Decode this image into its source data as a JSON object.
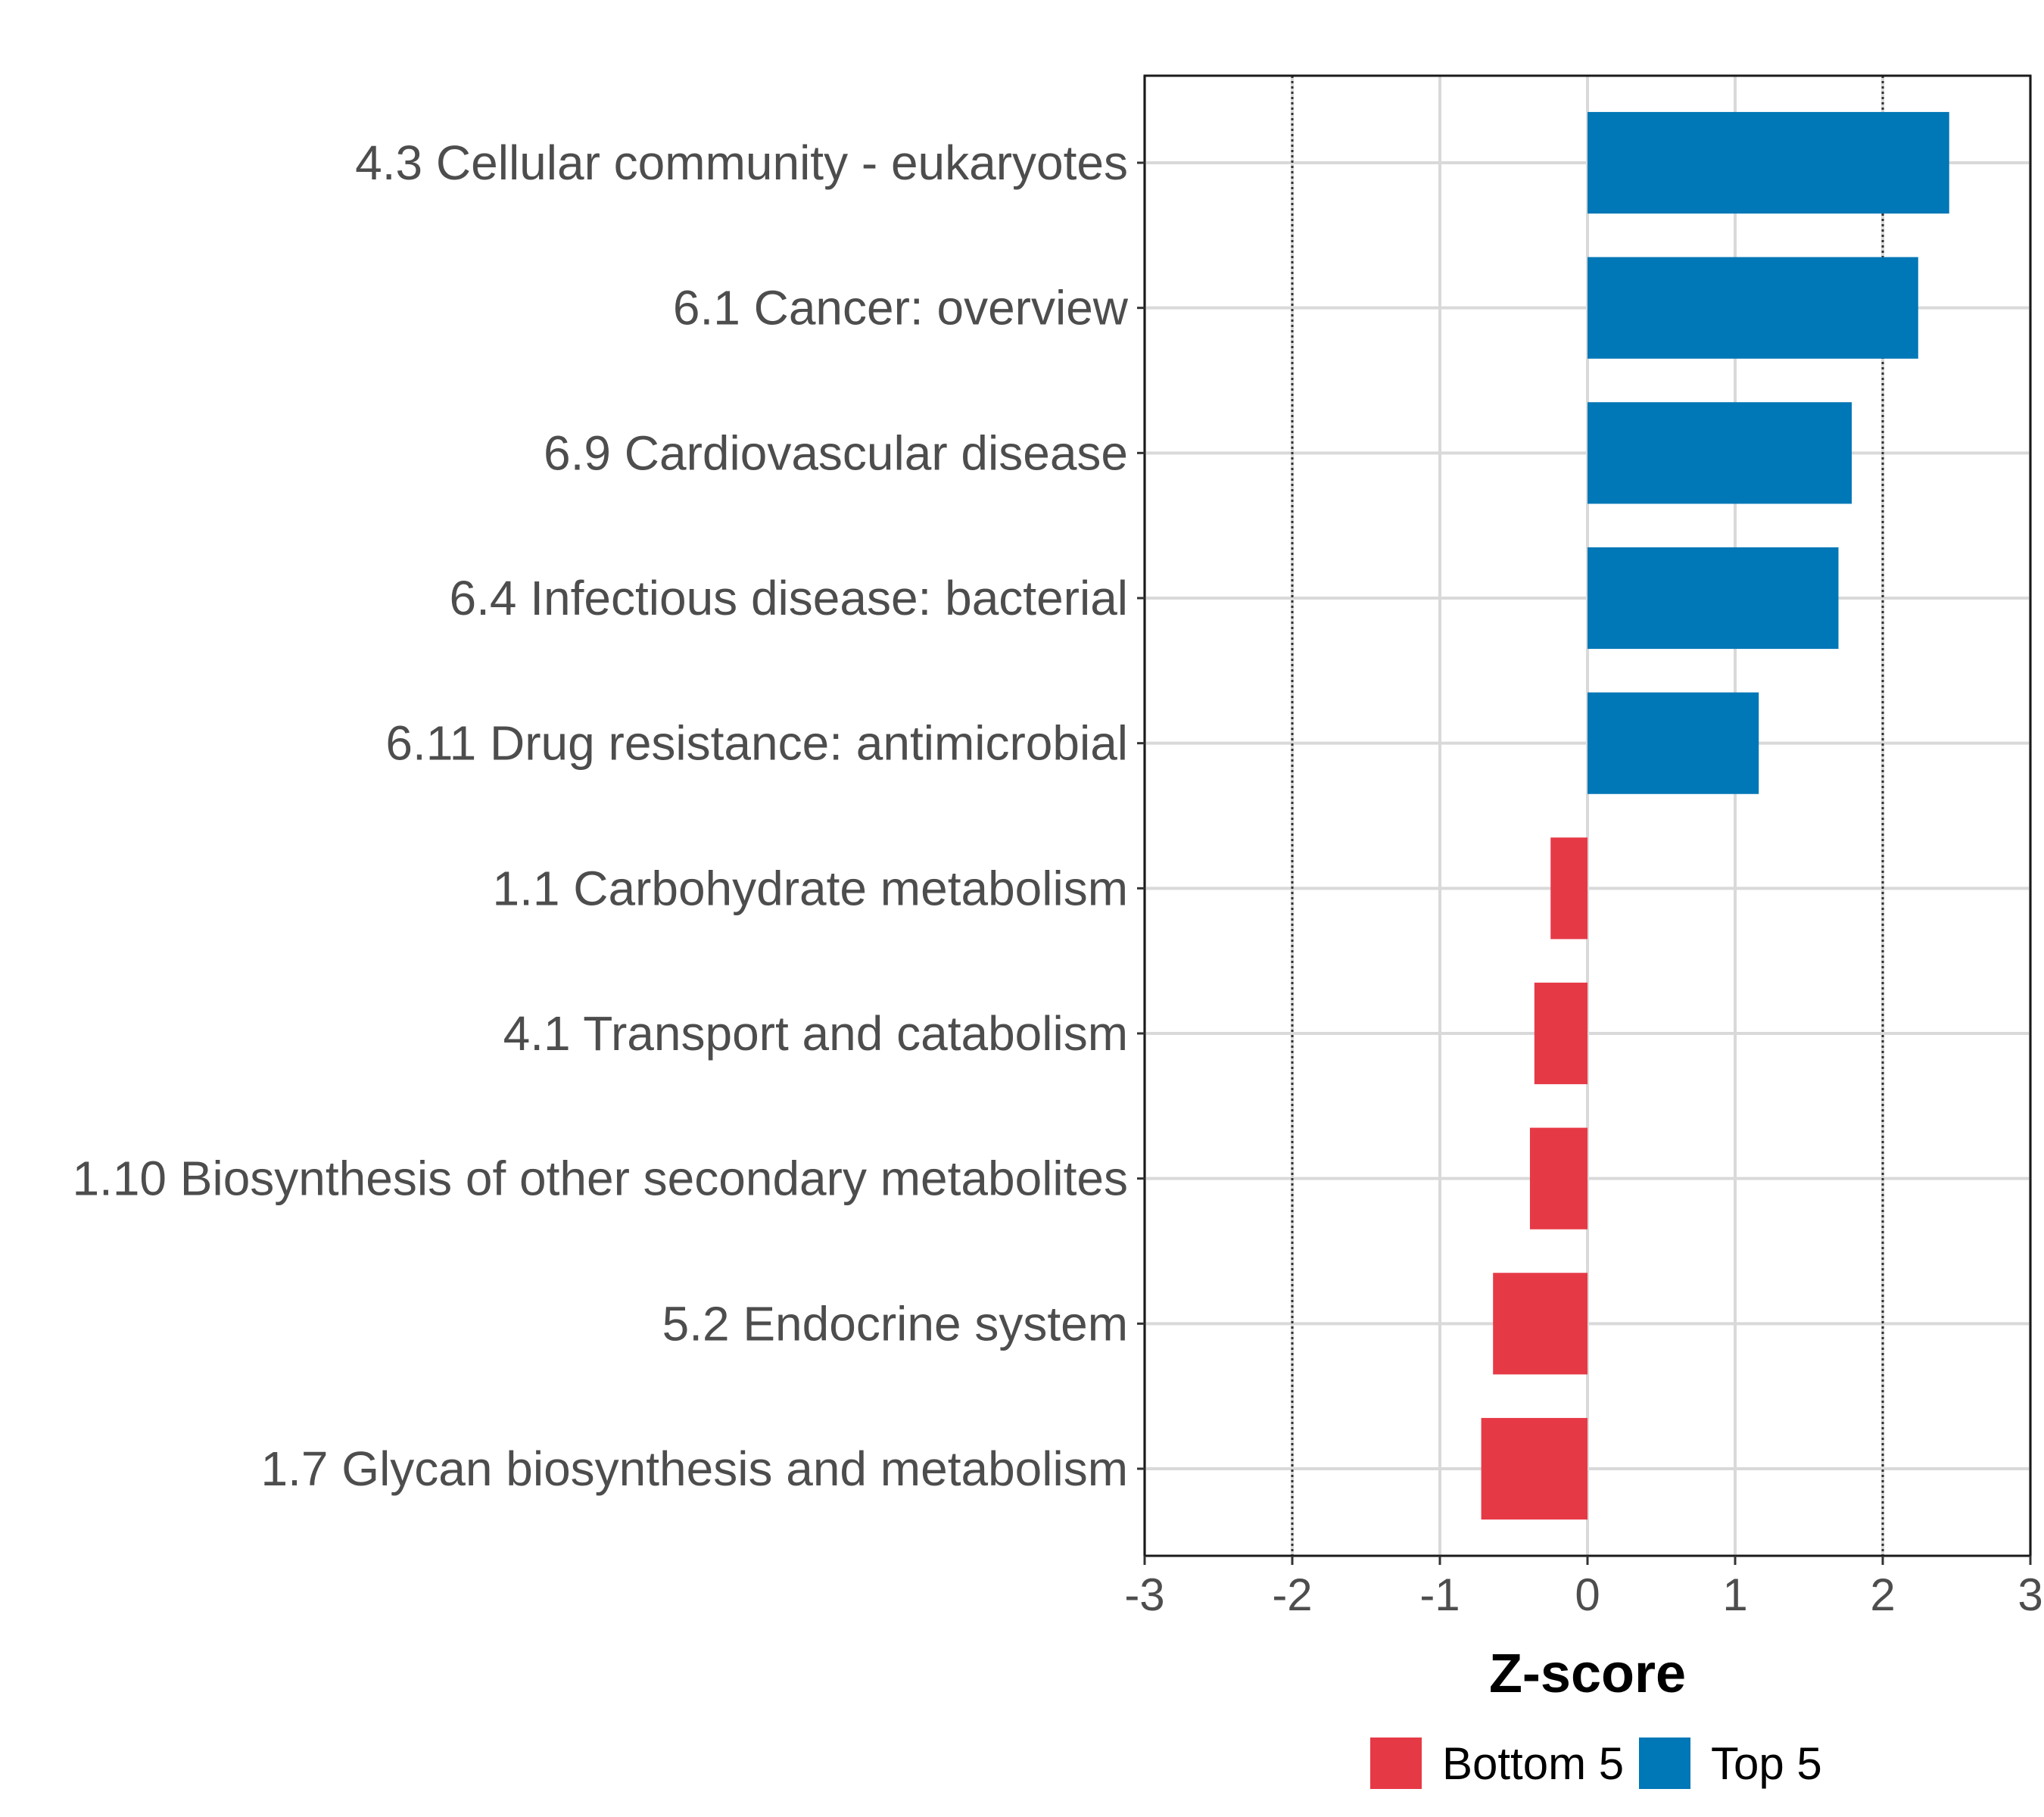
{
  "chart_data": {
    "type": "bar",
    "orientation": "horizontal",
    "categories": [
      "4.3 Cellular community - eukaryotes",
      "6.1 Cancer: overview",
      "6.9 Cardiovascular disease",
      "6.4 Infectious disease: bacterial",
      "6.11 Drug resistance: antimicrobial",
      "1.1 Carbohydrate metabolism",
      "4.1 Transport and catabolism",
      "1.10 Biosynthesis of other secondary metabolites",
      "5.2 Endocrine system",
      "1.7 Glycan biosynthesis and metabolism"
    ],
    "values": [
      2.45,
      2.24,
      1.79,
      1.7,
      1.16,
      -0.25,
      -0.36,
      -0.39,
      -0.64,
      -0.72
    ],
    "groups": [
      "Top 5",
      "Top 5",
      "Top 5",
      "Top 5",
      "Top 5",
      "Bottom 5",
      "Bottom 5",
      "Bottom 5",
      "Bottom 5",
      "Bottom 5"
    ],
    "xlabel": "Z-score",
    "ylabel": "",
    "xlim": [
      -3,
      3
    ],
    "xticks": [
      -3,
      -2,
      -1,
      0,
      1,
      2,
      3
    ],
    "xtick_labels": [
      "-3",
      "-2",
      "-1",
      "0",
      "1",
      "2",
      "3"
    ],
    "reference_lines": [
      -2,
      2
    ],
    "grid": true,
    "legend": {
      "position": "bottom",
      "entries": [
        {
          "label": "Bottom 5",
          "color": "#e63946"
        },
        {
          "label": "Top 5",
          "color": "#0077b6"
        }
      ]
    },
    "colors": {
      "Top 5": "#0077b6",
      "Bottom 5": "#e63946"
    }
  }
}
